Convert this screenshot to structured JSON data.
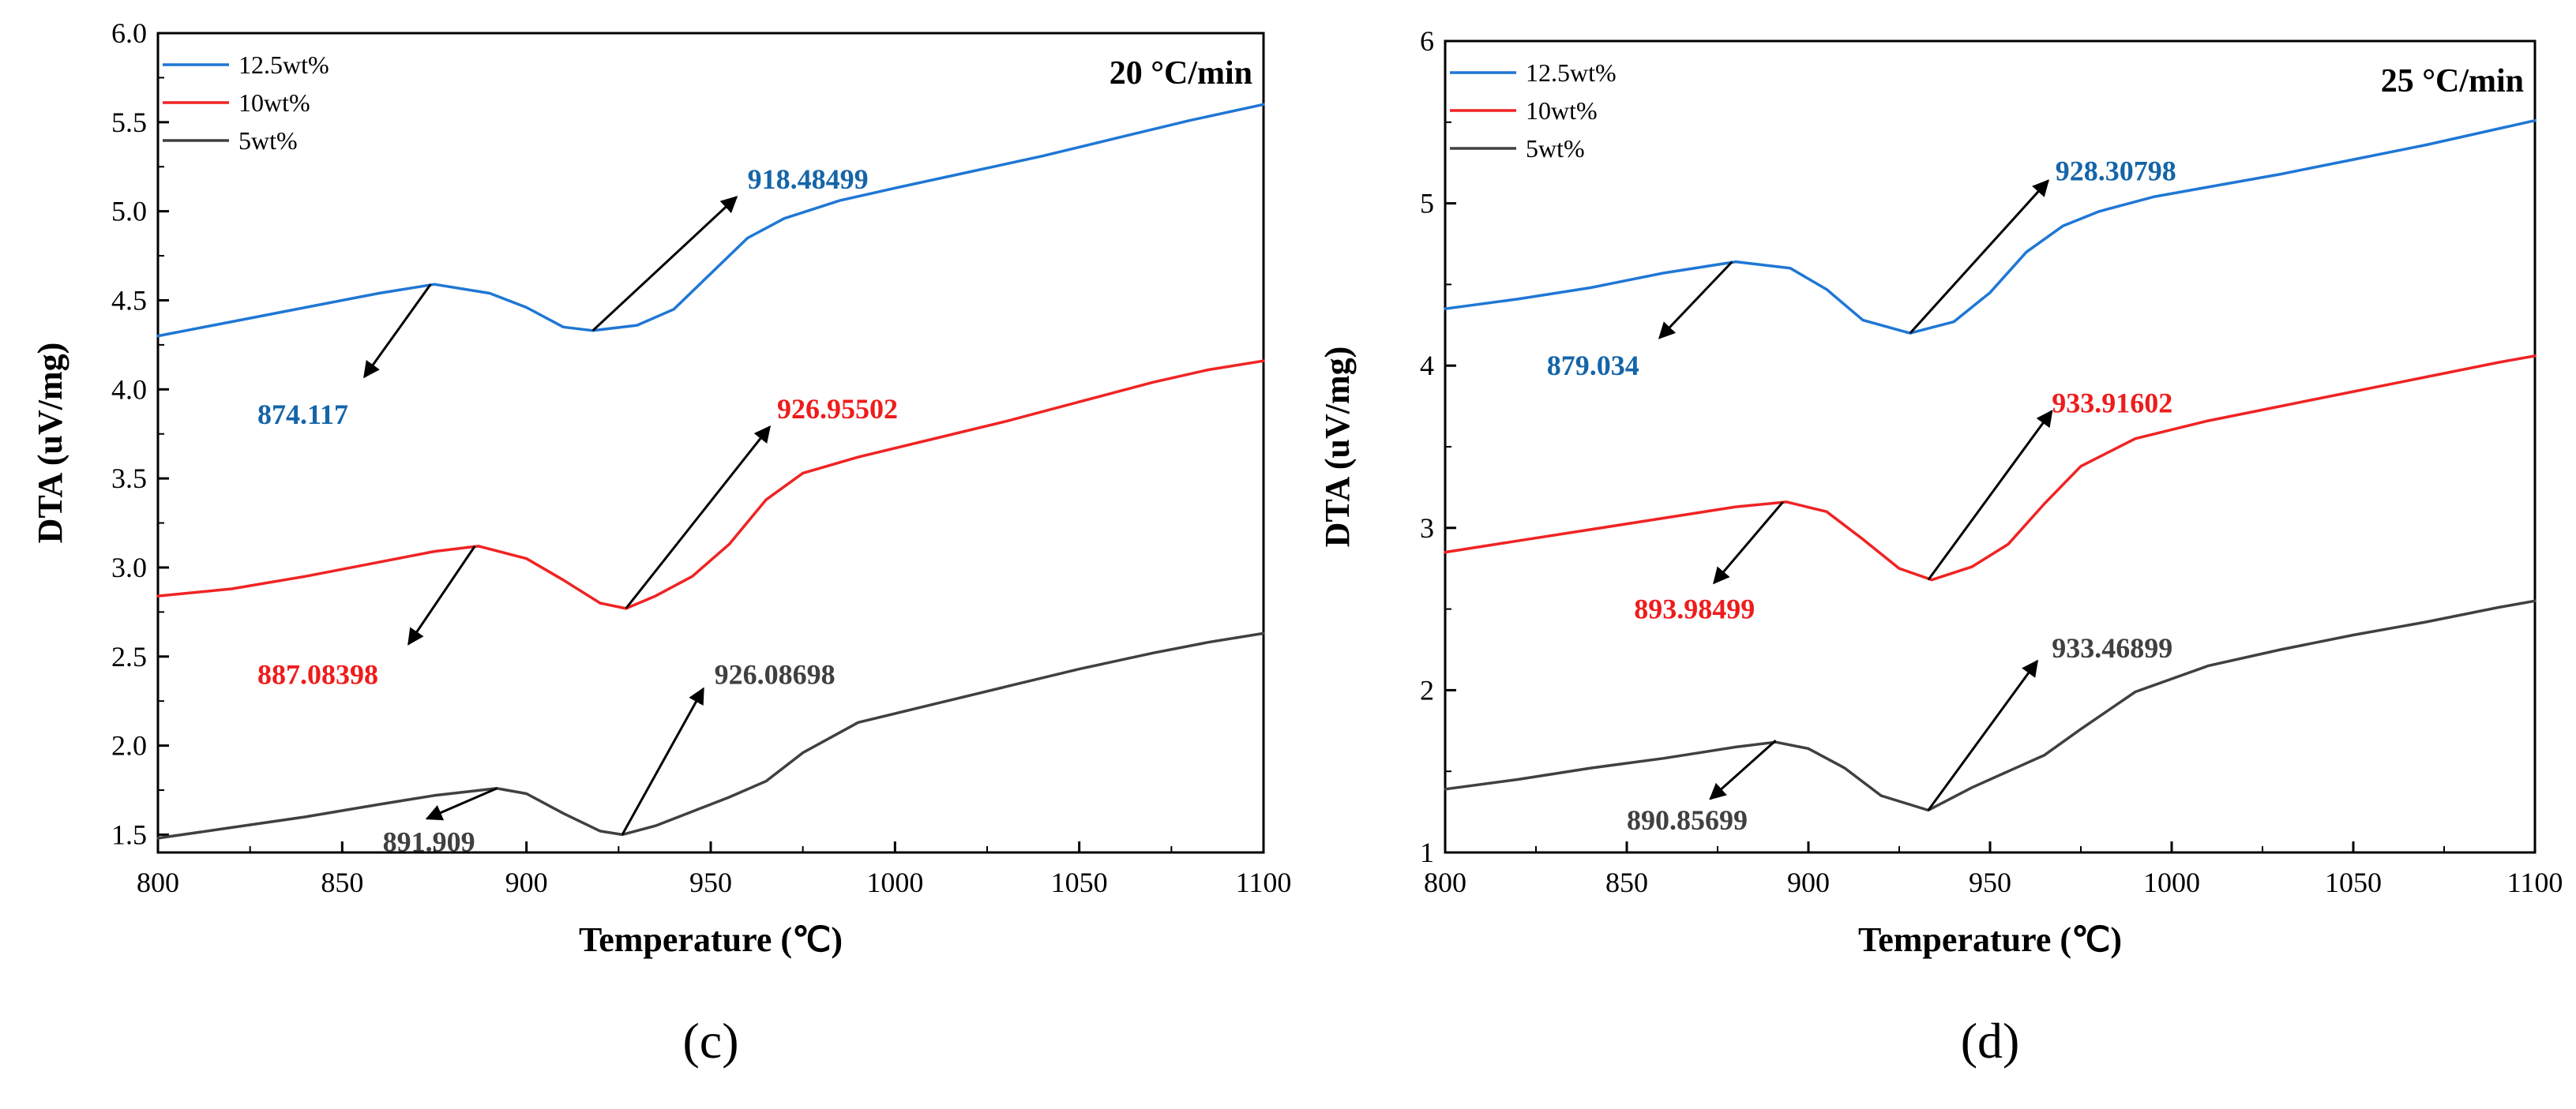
{
  "colors": {
    "blue": "#1f77d4",
    "red": "#f02323",
    "gray": "#404040",
    "annBlue": "#1565a8",
    "annRed": "#ee1c1c",
    "annGray": "#404040"
  },
  "chart_data": [
    {
      "type": "line",
      "panel_label": "(c)",
      "rate_label": "20 °C/min",
      "xlabel": "Temperature (℃)",
      "ylabel": "DTA (uV/mg)",
      "xlim": [
        800,
        1100
      ],
      "ylim": [
        1.4,
        6.0
      ],
      "xticks": [
        "800",
        "850",
        "900",
        "950",
        "1000",
        "1050",
        "1100"
      ],
      "yticks": [
        "1.5",
        "2.0",
        "2.5",
        "3.0",
        "3.5",
        "4.0",
        "4.5",
        "5.0",
        "5.5",
        "6.0"
      ],
      "legend_position": "top-left",
      "series": [
        {
          "name": "12.5wt%",
          "color": "blue",
          "x": [
            800,
            820,
            840,
            860,
            875,
            890,
            900,
            910,
            918,
            930,
            940,
            950,
            960,
            970,
            985,
            1000,
            1020,
            1040,
            1060,
            1080,
            1100
          ],
          "y": [
            4.3,
            4.38,
            4.46,
            4.54,
            4.59,
            4.54,
            4.46,
            4.35,
            4.33,
            4.36,
            4.45,
            4.65,
            4.85,
            4.96,
            5.06,
            5.13,
            5.22,
            5.31,
            5.41,
            5.51,
            5.6
          ]
        },
        {
          "name": "10wt%",
          "color": "red",
          "x": [
            800,
            820,
            840,
            860,
            875,
            887,
            900,
            910,
            920,
            927,
            935,
            945,
            955,
            965,
            975,
            990,
            1010,
            1030,
            1050,
            1070,
            1085,
            1100
          ],
          "y": [
            2.84,
            2.88,
            2.95,
            3.03,
            3.09,
            3.12,
            3.05,
            2.93,
            2.8,
            2.77,
            2.84,
            2.95,
            3.13,
            3.38,
            3.53,
            3.62,
            3.72,
            3.82,
            3.93,
            4.04,
            4.11,
            4.16
          ]
        },
        {
          "name": "5wt%",
          "color": "gray",
          "x": [
            800,
            820,
            840,
            860,
            875,
            892,
            900,
            910,
            920,
            926,
            935,
            945,
            955,
            965,
            975,
            990,
            1010,
            1030,
            1050,
            1070,
            1085,
            1100
          ],
          "y": [
            1.48,
            1.54,
            1.6,
            1.67,
            1.72,
            1.76,
            1.73,
            1.62,
            1.52,
            1.5,
            1.55,
            1.63,
            1.71,
            1.8,
            1.96,
            2.13,
            2.23,
            2.33,
            2.43,
            2.52,
            2.58,
            2.63
          ]
        }
      ],
      "annotations": [
        {
          "text": "918.48499",
          "color": "annBlue",
          "from": [
            918,
            4.33
          ],
          "to": [
            957,
            5.08
          ],
          "label_at": [
            960,
            5.18
          ],
          "anchor": "start"
        },
        {
          "text": "874.117",
          "color": "annBlue",
          "from": [
            874,
            4.59
          ],
          "to": [
            856,
            4.07
          ],
          "label_at": [
            827,
            3.86
          ],
          "anchor": "start"
        },
        {
          "text": "926.95502",
          "color": "annRed",
          "from": [
            927,
            2.77
          ],
          "to": [
            966,
            3.79
          ],
          "label_at": [
            968,
            3.89
          ],
          "anchor": "start"
        },
        {
          "text": "887.08398",
          "color": "annRed",
          "from": [
            886,
            3.12
          ],
          "to": [
            868,
            2.57
          ],
          "label_at": [
            827,
            2.4
          ],
          "anchor": "start"
        },
        {
          "text": "926.08698",
          "color": "annGray",
          "from": [
            926,
            1.5
          ],
          "to": [
            948,
            2.32
          ],
          "label_at": [
            951,
            2.4
          ],
          "anchor": "start"
        },
        {
          "text": "891.909",
          "color": "annGray",
          "from": [
            892,
            1.76
          ],
          "to": [
            873,
            1.59
          ],
          "label_at": [
            861,
            1.46
          ],
          "anchor": "start"
        }
      ]
    },
    {
      "type": "line",
      "panel_label": "(d)",
      "rate_label": "25 °C/min",
      "xlabel": "Temperature (℃)",
      "ylabel": "DTA (uV/mg)",
      "xlim": [
        800,
        1100
      ],
      "ylim": [
        1.0,
        6.0
      ],
      "xticks": [
        "800",
        "850",
        "900",
        "950",
        "1000",
        "1050",
        "1100"
      ],
      "yticks": [
        "1",
        "2",
        "3",
        "4",
        "5",
        "6"
      ],
      "legend_position": "top-left",
      "series": [
        {
          "name": "12.5wt%",
          "color": "blue",
          "x": [
            800,
            820,
            840,
            860,
            880,
            895,
            905,
            915,
            928,
            940,
            950,
            960,
            970,
            980,
            995,
            1010,
            1030,
            1050,
            1070,
            1090,
            1100
          ],
          "y": [
            4.35,
            4.41,
            4.48,
            4.57,
            4.64,
            4.6,
            4.47,
            4.28,
            4.2,
            4.27,
            4.45,
            4.7,
            4.86,
            4.95,
            5.04,
            5.1,
            5.18,
            5.27,
            5.36,
            5.46,
            5.51
          ]
        },
        {
          "name": "10wt%",
          "color": "red",
          "x": [
            800,
            820,
            840,
            860,
            880,
            894,
            905,
            915,
            925,
            934,
            945,
            955,
            965,
            975,
            990,
            1010,
            1030,
            1050,
            1070,
            1090,
            1100
          ],
          "y": [
            2.85,
            2.92,
            2.99,
            3.06,
            3.13,
            3.16,
            3.1,
            2.93,
            2.75,
            2.68,
            2.76,
            2.9,
            3.15,
            3.38,
            3.55,
            3.66,
            3.75,
            3.84,
            3.93,
            4.02,
            4.06
          ]
        },
        {
          "name": "5wt%",
          "color": "gray",
          "x": [
            800,
            820,
            840,
            860,
            880,
            891,
            900,
            910,
            920,
            933,
            945,
            955,
            965,
            975,
            990,
            1010,
            1030,
            1050,
            1070,
            1090,
            1100
          ],
          "y": [
            1.39,
            1.45,
            1.52,
            1.58,
            1.65,
            1.68,
            1.64,
            1.52,
            1.35,
            1.26,
            1.4,
            1.5,
            1.6,
            1.76,
            1.99,
            2.15,
            2.25,
            2.34,
            2.42,
            2.51,
            2.55
          ]
        }
      ],
      "annotations": [
        {
          "text": "928.30798",
          "color": "annBlue",
          "from": [
            928,
            4.2
          ],
          "to": [
            966,
            5.14
          ],
          "label_at": [
            968,
            5.2
          ],
          "anchor": "start"
        },
        {
          "text": "879.034",
          "color": "annBlue",
          "from": [
            879,
            4.64
          ],
          "to": [
            859,
            4.17
          ],
          "label_at": [
            828,
            4.0
          ],
          "anchor": "start"
        },
        {
          "text": "933.91602",
          "color": "annRed",
          "from": [
            933,
            2.68
          ],
          "to": [
            967,
            3.72
          ],
          "label_at": [
            967,
            3.77
          ],
          "anchor": "start"
        },
        {
          "text": "893.98499",
          "color": "annRed",
          "from": [
            893,
            3.16
          ],
          "to": [
            874,
            2.66
          ],
          "label_at": [
            852,
            2.5
          ],
          "anchor": "start"
        },
        {
          "text": "933.46899",
          "color": "annGray",
          "from": [
            933,
            1.26
          ],
          "to": [
            963,
            2.18
          ],
          "label_at": [
            967,
            2.26
          ],
          "anchor": "start"
        },
        {
          "text": "890.85699",
          "color": "annGray",
          "from": [
            891,
            1.69
          ],
          "to": [
            873,
            1.33
          ],
          "label_at": [
            850,
            1.2
          ],
          "anchor": "start"
        }
      ]
    }
  ]
}
